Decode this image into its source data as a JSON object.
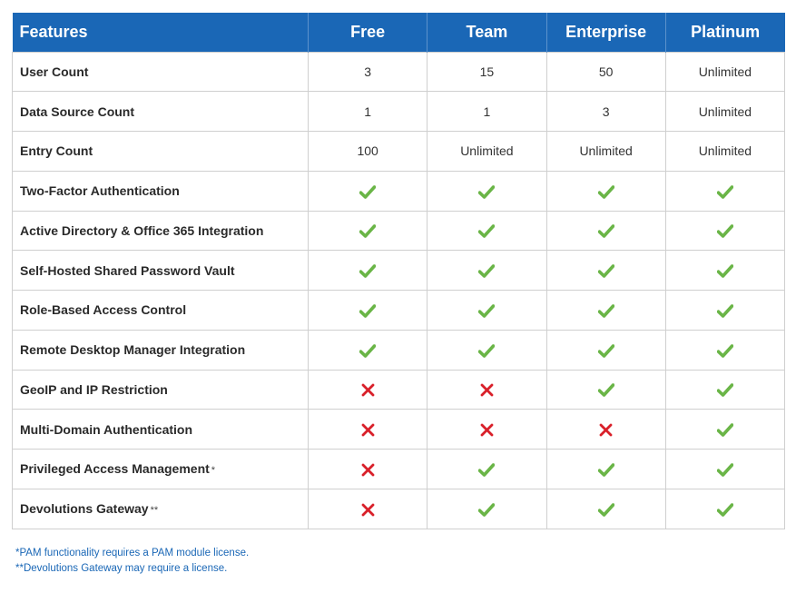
{
  "colors": {
    "header_bg": "#1a67b6",
    "check": "#6ab547",
    "cross": "#d9202a",
    "note": "#1a67b6"
  },
  "header": {
    "features": "Features",
    "plans": [
      "Free",
      "Team",
      "Enterprise",
      "Platinum"
    ]
  },
  "rows": [
    {
      "feature": "User Count",
      "suffix": "",
      "cells": [
        "3",
        "15",
        "50",
        "Unlimited"
      ]
    },
    {
      "feature": "Data Source Count",
      "suffix": "",
      "cells": [
        "1",
        "1",
        "3",
        "Unlimited"
      ]
    },
    {
      "feature": "Entry Count",
      "suffix": "",
      "cells": [
        "100",
        "Unlimited",
        "Unlimited",
        "Unlimited"
      ]
    },
    {
      "feature": "Two-Factor Authentication",
      "suffix": "",
      "cells": [
        "check",
        "check",
        "check",
        "check"
      ]
    },
    {
      "feature": "Active Directory & Office 365 Integration",
      "suffix": "",
      "cells": [
        "check",
        "check",
        "check",
        "check"
      ]
    },
    {
      "feature": "Self-Hosted Shared Password Vault",
      "suffix": "",
      "cells": [
        "check",
        "check",
        "check",
        "check"
      ]
    },
    {
      "feature": "Role-Based Access Control",
      "suffix": "",
      "cells": [
        "check",
        "check",
        "check",
        "check"
      ]
    },
    {
      "feature": "Remote Desktop Manager Integration",
      "suffix": "",
      "cells": [
        "check",
        "check",
        "check",
        "check"
      ]
    },
    {
      "feature": "GeoIP and IP Restriction",
      "suffix": "",
      "cells": [
        "cross",
        "cross",
        "check",
        "check"
      ]
    },
    {
      "feature": "Multi-Domain Authentication",
      "suffix": "",
      "cells": [
        "cross",
        "cross",
        "cross",
        "check"
      ]
    },
    {
      "feature": "Privileged Access Management",
      "suffix": "*",
      "cells": [
        "cross",
        "check",
        "check",
        "check"
      ]
    },
    {
      "feature": "Devolutions Gateway",
      "suffix": "**",
      "cells": [
        "cross",
        "check",
        "check",
        "check"
      ]
    }
  ],
  "notes": [
    "*PAM functionality requires a PAM module license.",
    "**Devolutions Gateway may require a license."
  ]
}
